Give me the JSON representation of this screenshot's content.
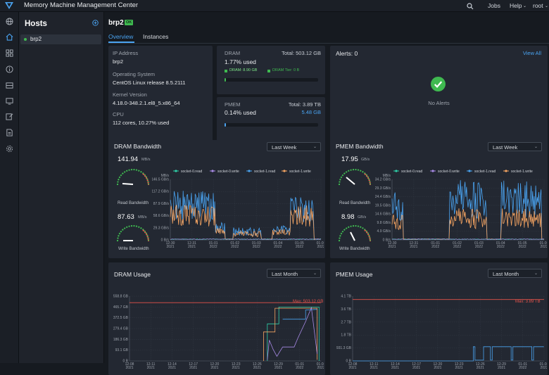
{
  "app": {
    "title": "Memory Machine Management Center",
    "jobs": "Jobs",
    "help": "Help",
    "user": "root"
  },
  "sidebar": {
    "title": "Hosts",
    "items": [
      {
        "label": "brp2"
      }
    ]
  },
  "header": {
    "title": "brp2",
    "badge": "OK",
    "tabs": [
      {
        "label": "Overview"
      },
      {
        "label": "Instances"
      }
    ]
  },
  "info": {
    "ip_label": "IP Address",
    "ip_value": "brp2",
    "os_label": "Operating System",
    "os_value": "CentOS Linux release 8.5.2111",
    "kernel_label": "Kernel Version",
    "kernel_value": "4.18.0-348.2.1.el8_5.x86_64",
    "cpu_label": "CPU",
    "cpu_value": "112 cores, 10.27% used"
  },
  "dram": {
    "label": "DRAM",
    "total": "Total: 503.12 GB",
    "used": "1.77% used",
    "legend_dram": "DRAM: 8.90 GB",
    "legend_tier": "DRAM Tier: 0 B",
    "progress": 0.0177
  },
  "pmem": {
    "label": "PMEM",
    "total": "Total: 3.89 TB",
    "used": "0.14% used",
    "value": "5.48 GB",
    "progress": 0.0014
  },
  "alerts": {
    "title": "Alerts: 0",
    "view_all": "View All",
    "empty": "No Alerts"
  },
  "dram_bw": {
    "title": "DRAM Bandwidth",
    "range": "Last Week",
    "read_value": "141.94",
    "read_unit": "MB/s",
    "read_label": "Read Bandwidth",
    "write_value": "87.63",
    "write_unit": "MB/s",
    "write_label": "Write Bandwidth",
    "units": "MB/s"
  },
  "pmem_bw": {
    "title": "PMEM Bandwidth",
    "range": "Last Week",
    "read_value": "17.95",
    "read_unit": "GB/s",
    "read_label": "Read Bandwidth",
    "write_value": "8.98",
    "write_unit": "GB/s",
    "write_label": "Write Bandwidth",
    "units": "MB/s"
  },
  "dram_usage": {
    "title": "DRAM Usage",
    "range": "Last Month",
    "max_label": "Max: 503.12 GB"
  },
  "pmem_usage": {
    "title": "PMEM Usage",
    "range": "Last Month",
    "max_label": "Max: 3.89 TB"
  },
  "colors": {
    "accent": "#4aa3f0",
    "ok": "#3fb950",
    "s0read": "#2ecfa8",
    "s0write": "#a88ae6",
    "s1read": "#4aa3f0",
    "s1write": "#f5a462",
    "max": "#e5534b"
  },
  "chart_data": [
    {
      "type": "line",
      "title": "DRAM Bandwidth",
      "legend": [
        "socket-0.read",
        "socket-0.write",
        "socket-1.read",
        "socket-1.write"
      ],
      "yticks": [
        "0 B/s",
        "29.3 GB/s",
        "58.6 GB/s",
        "87.9 GB/s",
        "117.2 GB/s",
        "146.5 GB/s"
      ],
      "xticks": [
        "12-30 2021",
        "12-31 2021",
        "01-01 2022",
        "01-02 2022",
        "01-03 2022",
        "01-04 2022",
        "01-05 2022",
        "01-06 2022"
      ]
    },
    {
      "type": "line",
      "title": "PMEM Bandwidth",
      "legend": [
        "socket-0.read",
        "socket-0.write",
        "socket-1.read",
        "socket-1.write"
      ],
      "yticks": [
        "0 B/s",
        "4.9 GB/s",
        "9.8 GB/s",
        "14.6 GB/s",
        "19.5 GB/s",
        "24.4 GB/s",
        "29.3 GB/s",
        "34.2 GB/s"
      ],
      "xticks": [
        "12-30 2021",
        "12-31 2021",
        "01-01 2022",
        "01-02 2022",
        "01-03 2022",
        "01-04 2022",
        "01-05 2022",
        "01-06 2022"
      ]
    },
    {
      "type": "line",
      "title": "DRAM Usage",
      "yticks": [
        "0 B",
        "93.1 GB",
        "186.3 GB",
        "279.4 GB",
        "372.5 GB",
        "465.7 GB",
        "558.8 GB"
      ],
      "xticks": [
        "12-08 2021",
        "12-11 2021",
        "12-14 2021",
        "12-17 2021",
        "12-20 2021",
        "12-23 2021",
        "12-26 2021",
        "12-29 2021",
        "01-01 2022",
        "01-04 2022"
      ]
    },
    {
      "type": "line",
      "title": "PMEM Usage",
      "yticks": [
        "0 B",
        "931.3 GB",
        "1.8 TB",
        "2.7 TB",
        "3.6 TB",
        "4.1 TB"
      ],
      "xticks": [
        "12-08 2021",
        "12-11 2021",
        "12-14 2021",
        "12-17 2021",
        "12-20 2021",
        "12-23 2021",
        "12-26 2021",
        "12-29 2021",
        "01-01 2022",
        "01-04 2022"
      ]
    }
  ]
}
